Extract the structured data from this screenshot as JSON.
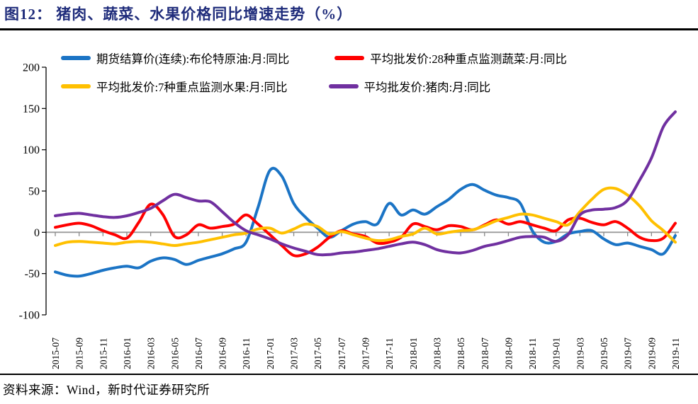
{
  "title": "图12：  猪肉、蔬菜、水果价格同比增速走势（%）",
  "source": "资料来源：Wind，新时代证券研究所",
  "colors": {
    "title_navy": "#1f2c7b",
    "brent_blue": "#1b74c5",
    "vegetable_red": "#ff0000",
    "fruit_yellow": "#ffc000",
    "pork_purple": "#7030a0",
    "zero_line_gray": "#9a9a9a",
    "axis_black": "#000000"
  },
  "chart_data": {
    "type": "line",
    "title": "图12：  猪肉、蔬菜、水果价格同比增速走势（%）",
    "ylabel": "",
    "xlabel": "",
    "ylim": [
      -100,
      200
    ],
    "yticks": [
      200,
      150,
      100,
      50,
      0,
      -50,
      -100
    ],
    "x_tick_step": 2,
    "grid": "zero-line-only",
    "legend_position": "top",
    "x": [
      "2015-07",
      "2015-08",
      "2015-09",
      "2015-10",
      "2015-11",
      "2015-12",
      "2016-01",
      "2016-02",
      "2016-03",
      "2016-04",
      "2016-05",
      "2016-06",
      "2016-07",
      "2016-08",
      "2016-09",
      "2016-10",
      "2016-11",
      "2016-12",
      "2017-01",
      "2017-02",
      "2017-03",
      "2017-04",
      "2017-05",
      "2017-06",
      "2017-07",
      "2017-08",
      "2017-09",
      "2017-10",
      "2017-11",
      "2017-12",
      "2018-01",
      "2018-02",
      "2018-03",
      "2018-04",
      "2018-05",
      "2018-06",
      "2018-07",
      "2018-08",
      "2018-09",
      "2018-10",
      "2018-11",
      "2018-12",
      "2019-01",
      "2019-02",
      "2019-03",
      "2019-04",
      "2019-05",
      "2019-06",
      "2019-07",
      "2019-08",
      "2019-09",
      "2019-10",
      "2019-11"
    ],
    "series": [
      {
        "name": "期货结算价(连续):布伦特原油:月:同比",
        "color": "#1b74c5",
        "values": [
          -48,
          -52,
          -53,
          -50,
          -46,
          -43,
          -41,
          -43,
          -35,
          -31,
          -33,
          -39,
          -34,
          -30,
          -26,
          -20,
          -12,
          30,
          75,
          68,
          35,
          18,
          5,
          -6,
          2,
          10,
          13,
          10,
          35,
          21,
          27,
          22,
          31,
          40,
          52,
          58,
          51,
          45,
          42,
          35,
          2,
          -12,
          -11,
          -2,
          1,
          2,
          -8,
          -15,
          -13,
          -17,
          -21,
          -26,
          -4
        ]
      },
      {
        "name": "平均批发价:28种重点监测蔬菜:月:同比",
        "color": "#ff0000",
        "values": [
          6,
          9,
          11,
          8,
          2,
          -3,
          -7,
          12,
          34,
          22,
          -5,
          -3,
          9,
          5,
          7,
          10,
          21,
          10,
          -3,
          -16,
          -28,
          -26,
          -18,
          -6,
          2,
          -2,
          -5,
          -13,
          -12,
          -6,
          10,
          7,
          3,
          8,
          7,
          3,
          9,
          15,
          10,
          13,
          9,
          5,
          2,
          15,
          17,
          12,
          9,
          13,
          5,
          -6,
          -10,
          -7,
          11
        ]
      },
      {
        "name": "平均批发价:7种重点监测水果:月:同比",
        "color": "#ffc000",
        "values": [
          -16,
          -12,
          -11,
          -12,
          -13,
          -14,
          -12,
          -11,
          -12,
          -14,
          -16,
          -14,
          -12,
          -9,
          -6,
          -3,
          -1,
          4,
          5,
          -1,
          4,
          10,
          7,
          -2,
          1,
          -3,
          -7,
          -10,
          -9,
          -5,
          -2,
          5,
          -2,
          0,
          2,
          3,
          8,
          14,
          18,
          22,
          21,
          17,
          13,
          9,
          25,
          40,
          52,
          53,
          45,
          32,
          14,
          2,
          -12
        ]
      },
      {
        "name": "平均批发价:猪肉:月:同比",
        "color": "#7030a0",
        "values": [
          20,
          22,
          23,
          21,
          19,
          18,
          20,
          24,
          29,
          38,
          46,
          42,
          38,
          37,
          25,
          12,
          2,
          -3,
          -8,
          -14,
          -19,
          -23,
          -27,
          -27,
          -25,
          -24,
          -22,
          -20,
          -17,
          -14,
          -12,
          -15,
          -21,
          -24,
          -25,
          -22,
          -17,
          -14,
          -10,
          -6,
          -5,
          -6,
          -11,
          -3,
          21,
          27,
          28,
          30,
          39,
          63,
          90,
          128,
          146
        ]
      }
    ]
  }
}
